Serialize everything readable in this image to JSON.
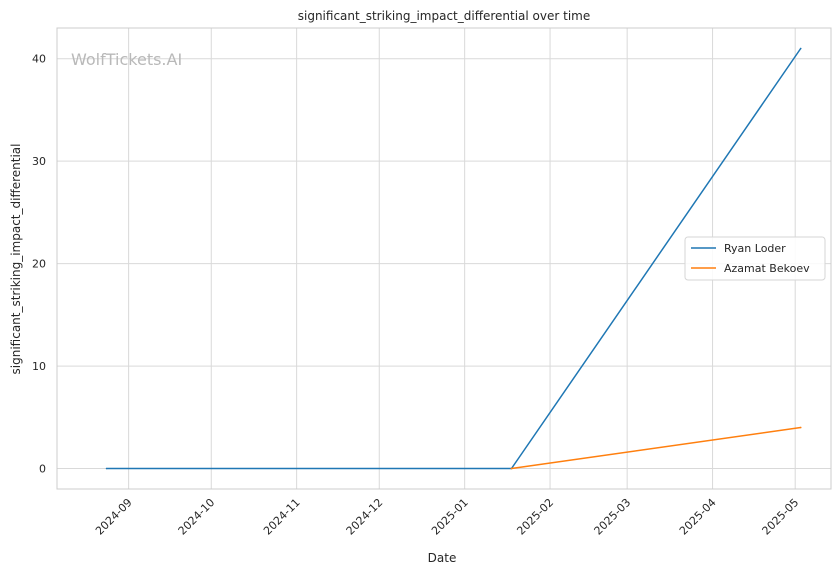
{
  "chart_data": {
    "type": "line",
    "title": "significant_striking_impact_differential over time",
    "xlabel": "Date",
    "ylabel": "significant_striking_impact_differential",
    "watermark": "WolfTickets.AI",
    "x_ticks": [
      "2024-09",
      "2024-10",
      "2024-11",
      "2024-12",
      "2025-01",
      "2025-02",
      "2025-03",
      "2025-04",
      "2025-05"
    ],
    "y_ticks": [
      "0",
      "10",
      "20",
      "30",
      "40"
    ],
    "xlim": [
      "2024-08-06",
      "2025-05-14"
    ],
    "ylim": [
      -2,
      43
    ],
    "grid": true,
    "legend_position": "center-right",
    "series": [
      {
        "name": "Ryan Loder",
        "color": "#1f77b4",
        "points": [
          {
            "x": "2024-08-24",
            "y": 0
          },
          {
            "x": "2025-01-18",
            "y": 0
          },
          {
            "x": "2025-05-03",
            "y": 41
          }
        ]
      },
      {
        "name": "Azamat Bekoev",
        "color": "#ff7f0e",
        "points": [
          {
            "x": "2025-01-18",
            "y": 0
          },
          {
            "x": "2025-05-03",
            "y": 4
          }
        ]
      }
    ]
  }
}
